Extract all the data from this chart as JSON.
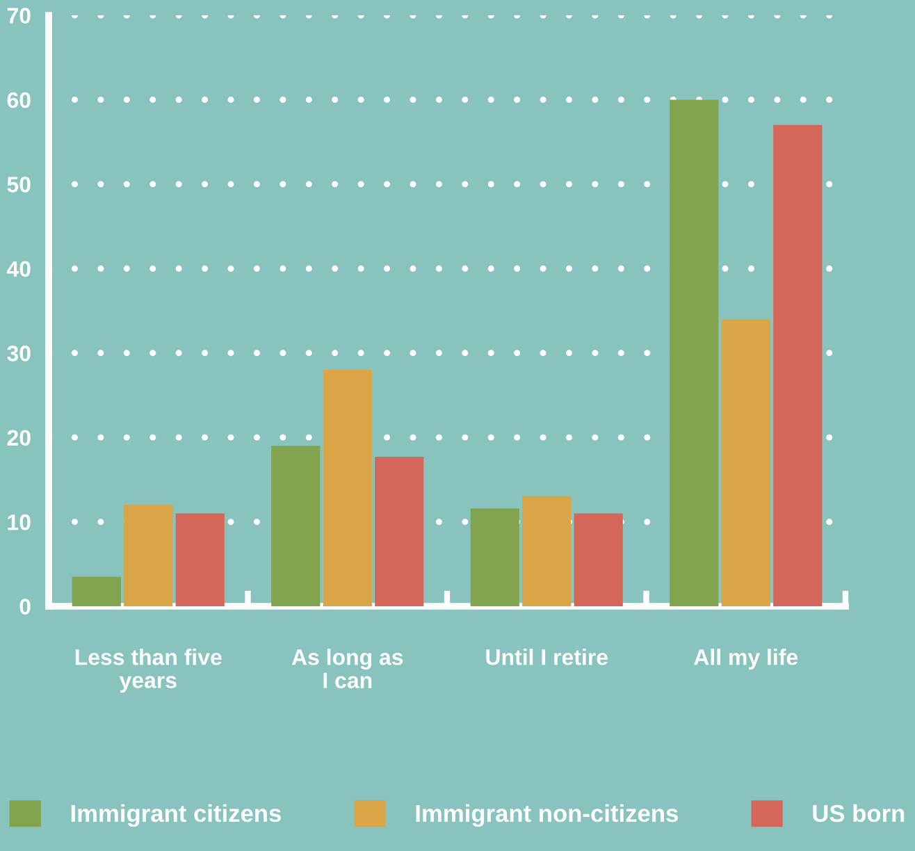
{
  "chart_data": {
    "type": "bar",
    "categories": [
      "Less than five\nyears",
      "As long as\nI can",
      "Until I retire",
      "All my life"
    ],
    "series": [
      {
        "name": "Immigrant citizens",
        "color": "#82a44f",
        "values": [
          3.5,
          19,
          11.6,
          60
        ]
      },
      {
        "name": "Immigrant non-citizens",
        "color": "#d9a547",
        "values": [
          12,
          28,
          13,
          34
        ]
      },
      {
        "name": "US born",
        "color": "#d4665a",
        "values": [
          11,
          17.7,
          11,
          57
        ]
      }
    ],
    "ylim": [
      0,
      70
    ],
    "yticks": [
      0,
      10,
      20,
      30,
      40,
      50,
      60,
      70
    ],
    "grid": "y",
    "legend": "bottom"
  }
}
